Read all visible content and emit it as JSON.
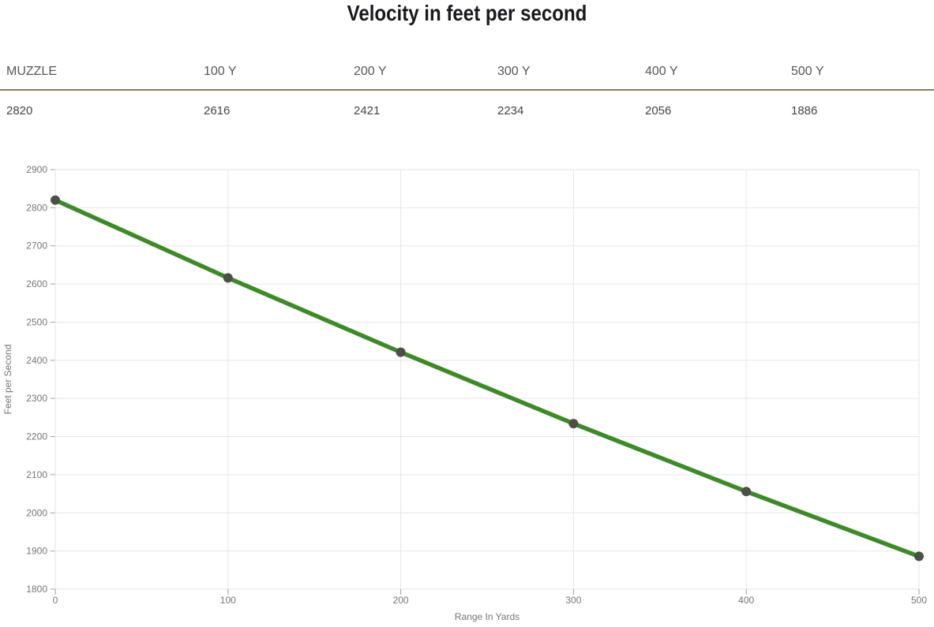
{
  "page": {
    "title": "Velocity in feet per second"
  },
  "table": {
    "headers": [
      "MUZZLE",
      "100 Y",
      "200 Y",
      "300 Y",
      "400 Y",
      "500 Y"
    ],
    "values": [
      "2820",
      "2616",
      "2421",
      "2234",
      "2056",
      "1886"
    ]
  },
  "chart_data": {
    "type": "line",
    "title": "Velocity in feet per second",
    "x": [
      0,
      100,
      200,
      300,
      400,
      500
    ],
    "y": [
      2820,
      2616,
      2421,
      2234,
      2056,
      1886
    ],
    "series_name": "Velocity",
    "xlabel": "Range In Yards",
    "ylabel": "Feet per Second",
    "xlim": [
      0,
      500
    ],
    "ylim": [
      1800,
      2900
    ],
    "xticks": [
      0,
      100,
      200,
      300,
      400,
      500
    ],
    "yticks": [
      1800,
      1900,
      2000,
      2100,
      2200,
      2300,
      2400,
      2500,
      2600,
      2700,
      2800,
      2900
    ],
    "grid": "on",
    "legend": "none",
    "colors": {
      "line": "#3e8a28",
      "point": "#4b4f45",
      "gridline": "#e6e6e6",
      "tick": "#9e9e9e",
      "tick_label": "#757575",
      "axis_title": "#757575",
      "table_divider": "#86805f",
      "title_text": "#17191d"
    }
  }
}
